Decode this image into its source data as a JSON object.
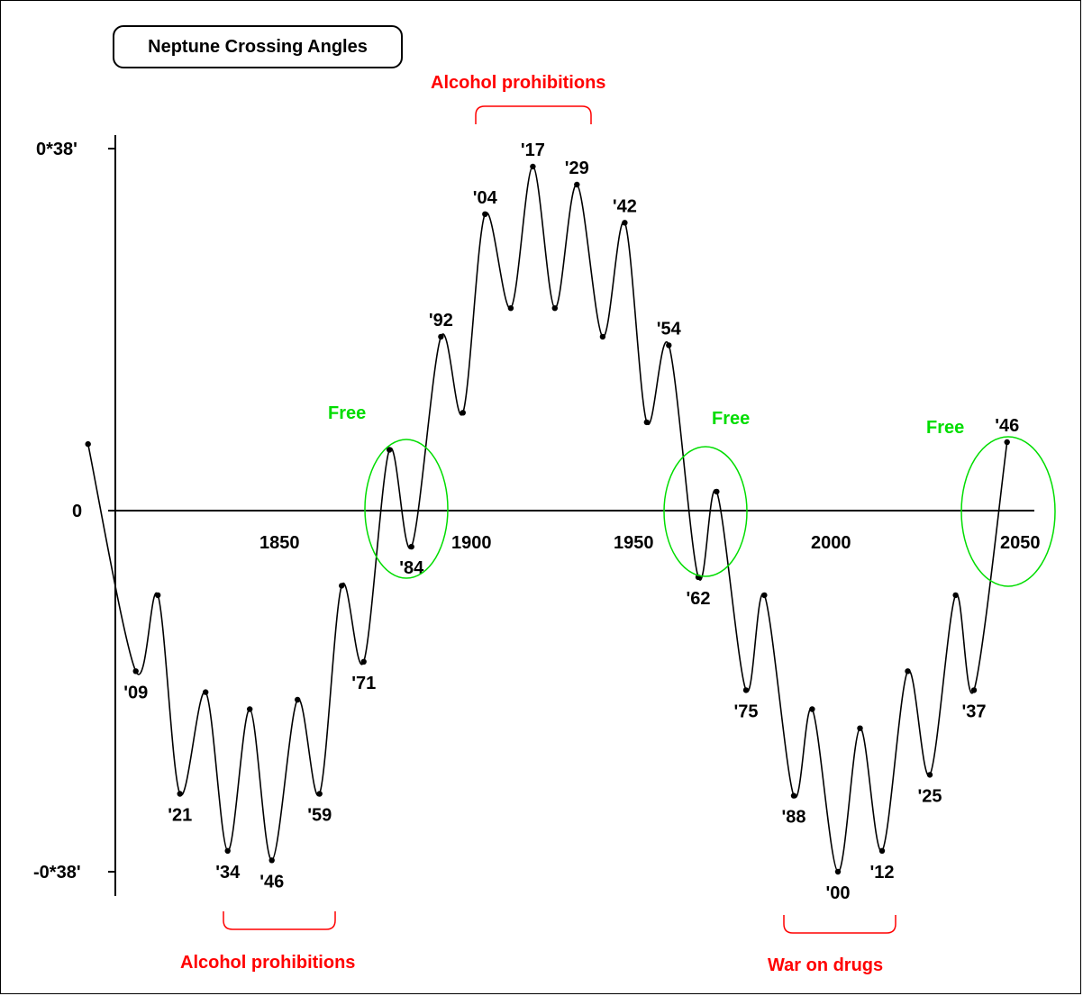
{
  "chart_data": {
    "type": "line",
    "title": "Neptune Crossing Angles",
    "xlabel": "",
    "ylabel": "",
    "x_ticks": [
      "1850",
      "1900",
      "1950",
      "2000",
      "2050"
    ],
    "y_ticks": [
      "0*38'",
      "0",
      "-0*38'"
    ],
    "ylim_label": [
      -38,
      38
    ],
    "points": [
      {
        "year": 1796,
        "value_arcmin": 7.0,
        "label": ""
      },
      {
        "year": 1809,
        "value_arcmin": -16.9,
        "label": "'09"
      },
      {
        "year": 1815,
        "value_arcmin": -8.9,
        "label": ""
      },
      {
        "year": 1821,
        "value_arcmin": -29.8,
        "label": "'21"
      },
      {
        "year": 1828,
        "value_arcmin": -19.1,
        "label": ""
      },
      {
        "year": 1834,
        "value_arcmin": -35.8,
        "label": "'34"
      },
      {
        "year": 1840,
        "value_arcmin": -20.9,
        "label": ""
      },
      {
        "year": 1846,
        "value_arcmin": -36.8,
        "label": "'46"
      },
      {
        "year": 1853,
        "value_arcmin": -19.9,
        "label": ""
      },
      {
        "year": 1859,
        "value_arcmin": -29.8,
        "label": "'59"
      },
      {
        "year": 1865,
        "value_arcmin": -7.9,
        "label": ""
      },
      {
        "year": 1871,
        "value_arcmin": -15.9,
        "label": "'71"
      },
      {
        "year": 1878,
        "value_arcmin": 6.4,
        "label": ""
      },
      {
        "year": 1884,
        "value_arcmin": -3.8,
        "label": "'84"
      },
      {
        "year": 1892,
        "value_arcmin": 18.3,
        "label": "'92"
      },
      {
        "year": 1898,
        "value_arcmin": 10.3,
        "label": ""
      },
      {
        "year": 1904,
        "value_arcmin": 31.2,
        "label": "'04"
      },
      {
        "year": 1911,
        "value_arcmin": 21.3,
        "label": ""
      },
      {
        "year": 1917,
        "value_arcmin": 36.2,
        "label": "'17"
      },
      {
        "year": 1923,
        "value_arcmin": 21.3,
        "label": ""
      },
      {
        "year": 1929,
        "value_arcmin": 34.3,
        "label": "'29"
      },
      {
        "year": 1936,
        "value_arcmin": 18.3,
        "label": ""
      },
      {
        "year": 1942,
        "value_arcmin": 30.3,
        "label": "'42"
      },
      {
        "year": 1948,
        "value_arcmin": 9.3,
        "label": ""
      },
      {
        "year": 1954,
        "value_arcmin": 17.4,
        "label": "'54"
      },
      {
        "year": 1962,
        "value_arcmin": -7.0,
        "label": "'62"
      },
      {
        "year": 1967,
        "value_arcmin": 2.0,
        "label": ""
      },
      {
        "year": 1975,
        "value_arcmin": -18.9,
        "label": "'75"
      },
      {
        "year": 1980,
        "value_arcmin": -8.9,
        "label": ""
      },
      {
        "year": 1988,
        "value_arcmin": -30.0,
        "label": "'88"
      },
      {
        "year": 1993,
        "value_arcmin": -20.9,
        "label": ""
      },
      {
        "year": 2000,
        "value_arcmin": -38.0,
        "label": "'00"
      },
      {
        "year": 2006,
        "value_arcmin": -22.9,
        "label": ""
      },
      {
        "year": 2012,
        "value_arcmin": -35.8,
        "label": "'12"
      },
      {
        "year": 2019,
        "value_arcmin": -16.9,
        "label": ""
      },
      {
        "year": 2025,
        "value_arcmin": -27.8,
        "label": "'25"
      },
      {
        "year": 2032,
        "value_arcmin": -8.9,
        "label": ""
      },
      {
        "year": 2037,
        "value_arcmin": -18.9,
        "label": "'37"
      },
      {
        "year": 2046,
        "value_arcmin": 7.2,
        "label": "'46"
      }
    ],
    "annotations": {
      "alcohol_top": "Alcohol prohibitions",
      "alcohol_bottom": "Alcohol prohibitions",
      "war_on_drugs": "War on drugs",
      "free_1": "Free",
      "free_2": "Free",
      "free_3": "Free"
    },
    "colors": {
      "line": "#000000",
      "prohibition": "#ff0000",
      "free": "#00dd00"
    }
  }
}
